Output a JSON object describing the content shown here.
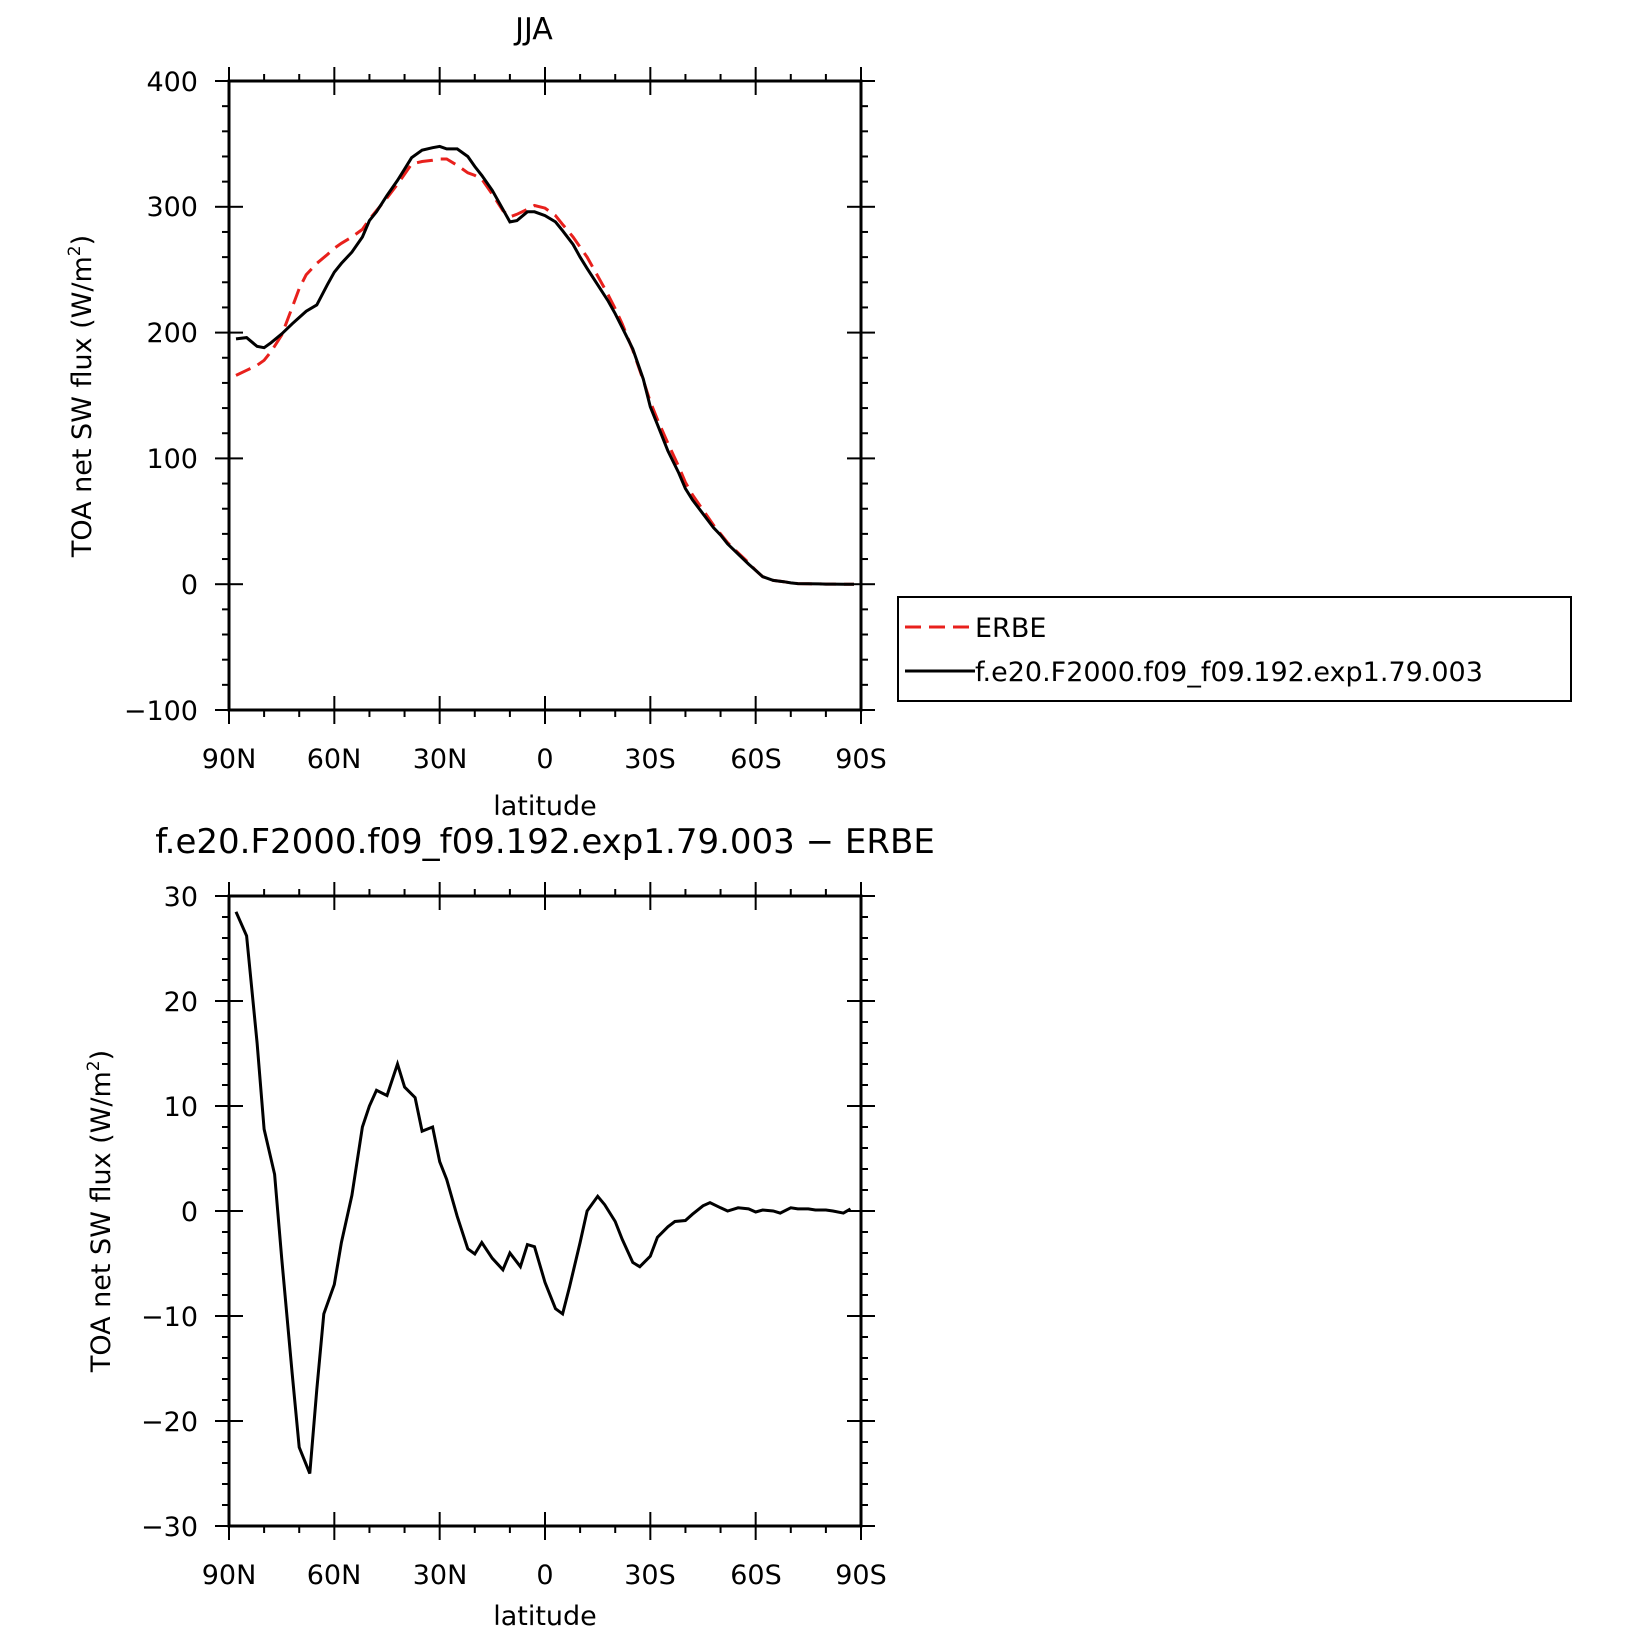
{
  "chart_data": [
    {
      "type": "line",
      "title": "JJA",
      "xlabel": "latitude",
      "ylabel": "TOA net SW flux (W/m",
      "ylabel_sup": "2",
      "ylabel_end": ")",
      "xlim": [
        90,
        -90
      ],
      "ylim": [
        -100,
        400
      ],
      "x_ticks": [
        90,
        60,
        30,
        0,
        -30,
        -60,
        -90
      ],
      "x_tick_labels": [
        "90N",
        "60N",
        "30N",
        "0",
        "30S",
        "60S",
        "90S"
      ],
      "y_ticks": [
        -100,
        0,
        100,
        200,
        300,
        400
      ],
      "y_tick_labels": [
        "−100",
        "0",
        "100",
        "200",
        "300",
        "400"
      ],
      "legend_placement": "right",
      "series": [
        {
          "name": "ERBE",
          "color": "#e8201c",
          "dash": "dashed",
          "x": [
            88,
            85,
            82,
            80,
            78,
            75,
            72,
            70,
            68,
            65,
            62,
            60,
            58,
            55,
            52,
            50,
            48,
            45,
            42,
            40,
            38,
            35,
            32,
            30,
            28,
            25,
            22,
            20,
            18,
            15,
            12,
            10,
            8,
            5,
            3,
            0,
            -3,
            -5,
            -8,
            -10,
            -12,
            -15,
            -18,
            -20,
            -22,
            -25,
            -28,
            -30,
            -32,
            -35,
            -38,
            -40,
            -42,
            -45,
            -48,
            -50,
            -52,
            -55,
            -58,
            -60,
            -62,
            -65,
            -68,
            -70,
            -72,
            -75,
            -78,
            -80,
            -82,
            -85,
            -88
          ],
          "y": [
            166,
            170,
            174,
            178,
            185,
            198,
            220,
            235,
            246,
            255,
            262,
            267,
            271,
            276,
            282,
            290,
            297,
            307,
            318,
            326,
            334,
            336,
            337,
            338,
            338,
            333,
            327,
            325,
            322,
            310,
            297,
            292,
            294,
            298,
            301,
            299,
            293,
            286,
            276,
            268,
            260,
            245,
            230,
            219,
            207,
            186,
            162,
            145,
            131,
            112,
            94,
            81,
            71,
            59,
            47,
            40,
            33,
            25,
            17,
            11,
            6,
            3,
            2,
            1,
            0.5,
            0.3,
            0.2,
            0.1,
            0.1,
            0,
            0
          ]
        },
        {
          "name": "f.e20.F2000.f09_f09.192.exp1.79.003",
          "color": "#000000",
          "dash": "solid",
          "x": [
            88,
            85,
            82,
            80,
            78,
            75,
            72,
            70,
            68,
            65,
            62,
            60,
            58,
            55,
            52,
            50,
            48,
            45,
            42,
            40,
            38,
            35,
            32,
            30,
            28,
            25,
            22,
            20,
            18,
            15,
            12,
            10,
            8,
            5,
            3,
            0,
            -3,
            -5,
            -8,
            -10,
            -12,
            -15,
            -18,
            -20,
            -22,
            -25,
            -28,
            -30,
            -32,
            -35,
            -38,
            -40,
            -42,
            -45,
            -48,
            -50,
            -52,
            -55,
            -58,
            -60,
            -62,
            -65,
            -68,
            -70,
            -72,
            -75,
            -78,
            -80,
            -82,
            -85,
            -88
          ],
          "y": [
            195,
            196,
            189,
            188,
            192,
            199,
            207,
            212,
            217,
            222,
            238,
            248,
            255,
            264,
            276,
            289,
            296,
            309,
            321,
            330,
            339,
            345,
            347,
            348,
            346,
            346,
            340,
            332,
            325,
            313,
            298,
            288,
            289,
            296,
            296,
            293,
            288,
            281,
            270,
            260,
            251,
            238,
            225,
            215,
            204,
            187,
            163,
            141,
            127,
            106,
            89,
            76,
            67,
            56,
            45,
            39,
            32,
            24,
            16,
            11,
            6,
            3,
            2,
            1,
            0.5,
            0.3,
            0.2,
            0.1,
            0.1,
            0,
            0
          ]
        }
      ]
    },
    {
      "type": "line",
      "title": "f.e20.F2000.f09_f09.192.exp1.79.003 − ERBE",
      "xlabel": "latitude",
      "ylabel": "TOA net SW flux (W/m",
      "ylabel_sup": "2",
      "ylabel_end": ")",
      "xlim": [
        90,
        -90
      ],
      "ylim": [
        -30,
        30
      ],
      "x_ticks": [
        90,
        60,
        30,
        0,
        -30,
        -60,
        -90
      ],
      "x_tick_labels": [
        "90N",
        "60N",
        "30N",
        "0",
        "30S",
        "60S",
        "90S"
      ],
      "y_ticks": [
        -30,
        -20,
        -10,
        0,
        10,
        20,
        30
      ],
      "y_tick_labels": [
        "−30",
        "−20",
        "−10",
        "0",
        "10",
        "20",
        "30"
      ],
      "series": [
        {
          "color": "#000000",
          "dash": "solid",
          "x": [
            88,
            85,
            82,
            80,
            77,
            75,
            72,
            70,
            67,
            65,
            63,
            60,
            58,
            55,
            52,
            50,
            48,
            45,
            42,
            40,
            37,
            35,
            32,
            30,
            28,
            25,
            22,
            20,
            18,
            15,
            12,
            10,
            7,
            5,
            3,
            0,
            -3,
            -5,
            -7,
            -10,
            -12,
            -15,
            -17,
            -20,
            -22,
            -25,
            -27,
            -30,
            -32,
            -35,
            -37,
            -40,
            -42,
            -45,
            -47,
            -50,
            -52,
            -55,
            -58,
            -60,
            -62,
            -65,
            -67,
            -70,
            -72,
            -75,
            -77,
            -80,
            -82,
            -85,
            -87
          ],
          "y": [
            28.5,
            26.2,
            16,
            7.8,
            3.5,
            -4.5,
            -15.5,
            -22.5,
            -25,
            -17,
            -9.8,
            -7,
            -3,
            1.5,
            8,
            10,
            11.5,
            11,
            14,
            11.8,
            10.8,
            7.6,
            8,
            4.7,
            3,
            -0.5,
            -3.6,
            -4.1,
            -3,
            -4.5,
            -5.6,
            -4,
            -5.3,
            -3.2,
            -3.4,
            -6.8,
            -9.3,
            -9.8,
            -7.2,
            -3,
            0,
            1.4,
            0.6,
            -1,
            -2.7,
            -4.9,
            -5.3,
            -4.3,
            -2.5,
            -1.5,
            -1,
            -0.9,
            -0.3,
            0.5,
            0.8,
            0.3,
            0,
            0.3,
            0.2,
            -0.1,
            0.1,
            0,
            -0.2,
            0.3,
            0.2,
            0.2,
            0.1,
            0.1,
            0,
            -0.2,
            0.2
          ]
        }
      ]
    }
  ]
}
